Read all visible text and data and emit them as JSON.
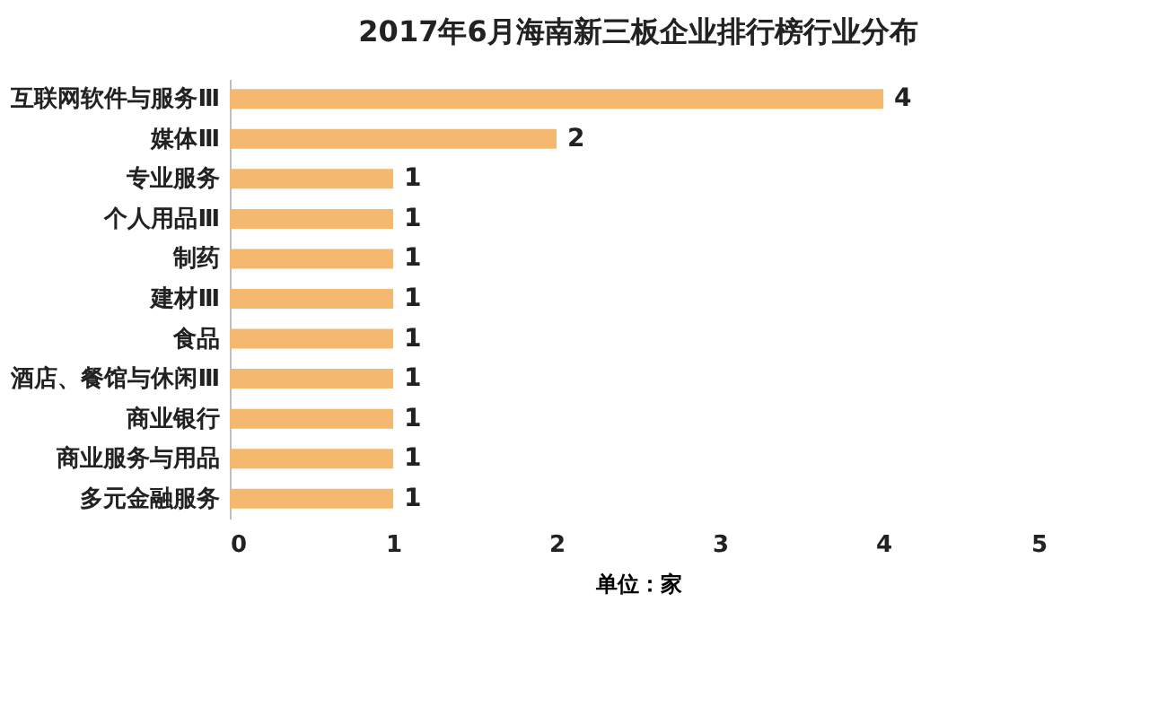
{
  "chart_data": {
    "type": "bar",
    "orientation": "horizontal",
    "title": "2017年6月海南新三板企业排行榜行业分布",
    "xlabel": "单位：家",
    "categories": [
      "互联网软件与服务Ⅲ",
      "媒体Ⅲ",
      "专业服务",
      "个人用品Ⅲ",
      "制药",
      "建材Ⅲ",
      "食品",
      "酒店、餐馆与休闲Ⅲ",
      "商业银行",
      "商业服务与用品",
      "多元金融服务"
    ],
    "values": [
      4,
      2,
      1,
      1,
      1,
      1,
      1,
      1,
      1,
      1,
      1
    ],
    "color": "#f4b96e",
    "xlim": [
      0,
      5
    ],
    "xticks": [
      0,
      1,
      2,
      3,
      4,
      5
    ],
    "grid": false,
    "data_labels": true
  }
}
